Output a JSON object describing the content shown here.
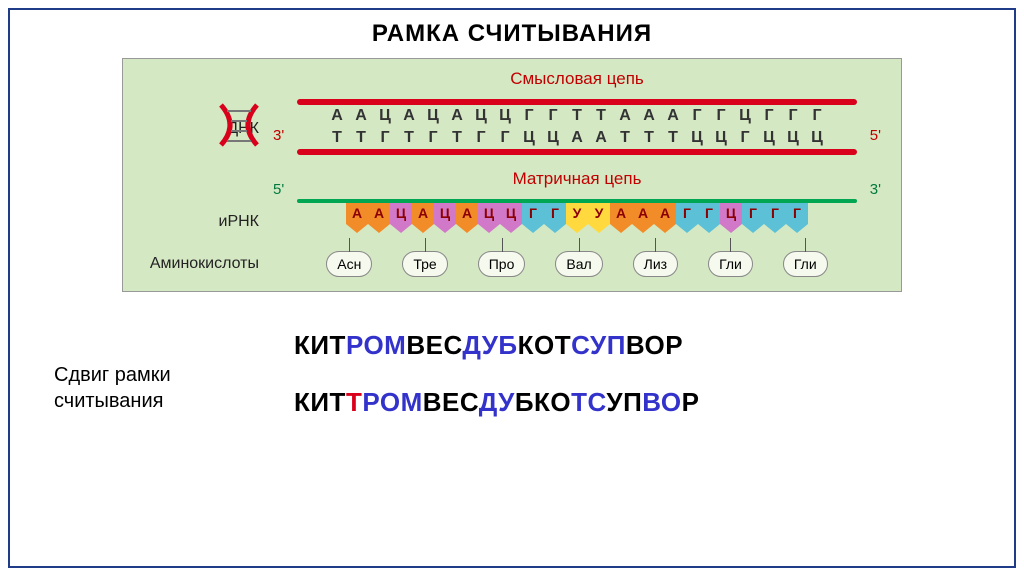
{
  "title": "РАМКА СЧИТЫВАНИЯ",
  "dnk_label": "ДНК",
  "sense_label": "Смысловая цепь",
  "template_label": "Матричная цепь",
  "irna_label": "иРНК",
  "aa_label": "Аминокислоты",
  "end3": "3'",
  "end5": "5'",
  "sense_seq": [
    "А",
    "А",
    "Ц",
    "А",
    "Ц",
    "А",
    "Ц",
    "Ц",
    "Г",
    "Г",
    "Т",
    "Т",
    "А",
    "А",
    "А",
    "Г",
    "Г",
    "Ц",
    "Г",
    "Г",
    "Г"
  ],
  "template_seq": [
    "Т",
    "Т",
    "Г",
    "Т",
    "Г",
    "Т",
    "Г",
    "Г",
    "Ц",
    "Ц",
    "А",
    "А",
    "Т",
    "Т",
    "Т",
    "Ц",
    "Ц",
    "Г",
    "Ц",
    "Ц",
    "Ц"
  ],
  "mrna_seq": [
    "А",
    "А",
    "Ц",
    "А",
    "Ц",
    "А",
    "Ц",
    "Ц",
    "Г",
    "Г",
    "У",
    "У",
    "А",
    "А",
    "А",
    "Г",
    "Г",
    "Ц",
    "Г",
    "Г",
    "Г"
  ],
  "mrna_colors": [
    "#f28c28",
    "#f28c28",
    "#d178c8",
    "#f28c28",
    "#d178c8",
    "#f28c28",
    "#d178c8",
    "#d178c8",
    "#5cc1d6",
    "#5cc1d6",
    "#ffd93d",
    "#ffd93d",
    "#f28c28",
    "#f28c28",
    "#f28c28",
    "#5cc1d6",
    "#5cc1d6",
    "#d178c8",
    "#5cc1d6",
    "#5cc1d6",
    "#5cc1d6"
  ],
  "amino_acids": [
    "Асн",
    "Тре",
    "Про",
    "Вал",
    "Лиз",
    "Гли",
    "Гли"
  ],
  "shift_label_l1": "Сдвиг рамки",
  "shift_label_l2": "считывания",
  "word1": [
    {
      "t": "КИТ",
      "c": "w-black"
    },
    {
      "t": "РОМ",
      "c": "w-blue"
    },
    {
      "t": "ВЕС",
      "c": "w-black"
    },
    {
      "t": "ДУБ",
      "c": "w-blue"
    },
    {
      "t": "КОТ",
      "c": "w-black"
    },
    {
      "t": "СУП",
      "c": "w-blue"
    },
    {
      "t": "ВОР",
      "c": "w-black"
    }
  ],
  "word2": [
    {
      "t": "КИТ",
      "c": "w-black"
    },
    {
      "t": "Т",
      "c": "w-red"
    },
    {
      "t": "РОМ",
      "c": "w-blue"
    },
    {
      "t": "ВЕС",
      "c": "w-black"
    },
    {
      "t": "ДУ",
      "c": "w-blue"
    },
    {
      "t": "БКО",
      "c": "w-black"
    },
    {
      "t": "ТС",
      "c": "w-blue"
    },
    {
      "t": "УП",
      "c": "w-black"
    },
    {
      "t": "ВО",
      "c": "w-blue"
    },
    {
      "t": "Р",
      "c": "w-black"
    }
  ],
  "colors": {
    "frame": "#1f3c88",
    "dna_bar": "#d9001b",
    "mrna_bar": "#00a651",
    "bg_diagram": "#d5e8c4"
  }
}
